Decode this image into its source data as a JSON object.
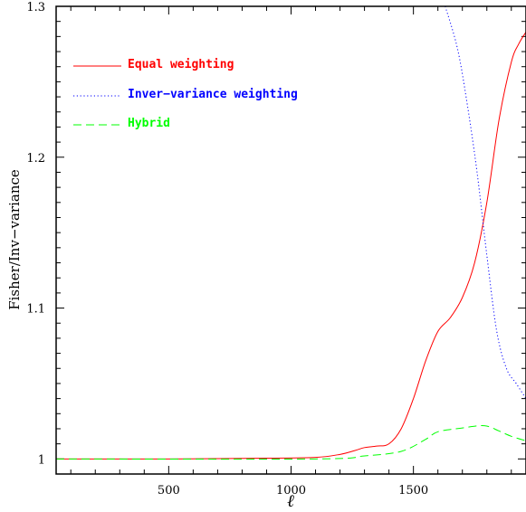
{
  "chart_data": {
    "type": "line",
    "title": "",
    "xlabel": "ℓ",
    "ylabel": "Fisher/Inv−variance",
    "xlim": [
      40,
      1960
    ],
    "ylim": [
      0.99,
      1.3
    ],
    "x_ticks": [
      {
        "value": 500,
        "label": "500"
      },
      {
        "value": 1000,
        "label": "1000"
      },
      {
        "value": 1500,
        "label": "1500"
      }
    ],
    "y_ticks": [
      {
        "value": 1.0,
        "label": "1"
      },
      {
        "value": 1.1,
        "label": "1.1"
      },
      {
        "value": 1.2,
        "label": "1.2"
      },
      {
        "value": 1.3,
        "label": "1.3"
      }
    ],
    "grid": false,
    "legend_position": "top-left",
    "series": [
      {
        "name": "Equal weighting",
        "color": "#ff0000",
        "dash": "solid",
        "points": [
          [
            40,
            1.0
          ],
          [
            500,
            1.0
          ],
          [
            900,
            1.0005
          ],
          [
            1100,
            1.001
          ],
          [
            1200,
            1.003
          ],
          [
            1260,
            1.0055
          ],
          [
            1300,
            1.0075
          ],
          [
            1350,
            1.0085
          ],
          [
            1400,
            1.01
          ],
          [
            1450,
            1.02
          ],
          [
            1500,
            1.04
          ],
          [
            1550,
            1.065
          ],
          [
            1600,
            1.0845
          ],
          [
            1650,
            1.0935
          ],
          [
            1700,
            1.107
          ],
          [
            1750,
            1.13
          ],
          [
            1800,
            1.17
          ],
          [
            1850,
            1.225
          ],
          [
            1900,
            1.263
          ],
          [
            1930,
            1.275
          ],
          [
            1960,
            1.283
          ]
        ]
      },
      {
        "name": "Inver−variance weighting",
        "color": "#0000ff",
        "dash": "dotted",
        "points": [
          [
            1630,
            1.3
          ],
          [
            1680,
            1.272
          ],
          [
            1720,
            1.235
          ],
          [
            1760,
            1.19
          ],
          [
            1800,
            1.135
          ],
          [
            1840,
            1.085
          ],
          [
            1880,
            1.06
          ],
          [
            1920,
            1.05
          ],
          [
            1960,
            1.04
          ]
        ]
      },
      {
        "name": "Hybrid",
        "color": "#00ff00",
        "dash": "dashed",
        "points": [
          [
            40,
            1.0
          ],
          [
            1100,
            1.0
          ],
          [
            1300,
            1.002
          ],
          [
            1450,
            1.005
          ],
          [
            1550,
            1.013
          ],
          [
            1600,
            1.018
          ],
          [
            1700,
            1.0205
          ],
          [
            1790,
            1.022
          ],
          [
            1850,
            1.0185
          ],
          [
            1900,
            1.015
          ],
          [
            1960,
            1.012
          ]
        ]
      }
    ]
  }
}
